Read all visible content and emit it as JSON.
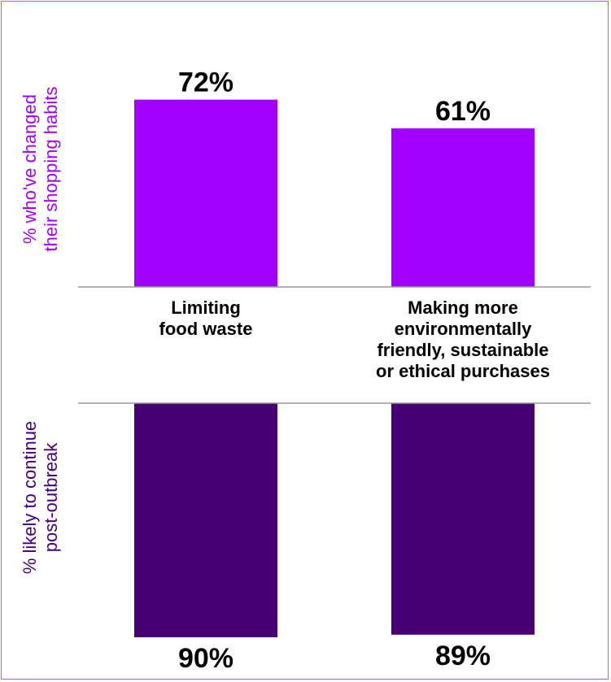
{
  "chart_data": {
    "type": "bar",
    "categories": [
      [
        "Limiting",
        "food waste"
      ],
      [
        "Making more",
        "environmentally",
        "friendly, sustainable",
        "or ethical purchases"
      ]
    ],
    "series": [
      {
        "values": [
          72,
          61
        ],
        "value_labels": [
          "72%",
          "61%"
        ],
        "color": "#a100ff",
        "axis_title": [
          "% who've changed",
          "their shopping habits"
        ],
        "axis_title_color": "#a100ff",
        "direction": "up"
      },
      {
        "values": [
          90,
          89
        ],
        "value_labels": [
          "90%",
          "89%"
        ],
        "color": "#460073",
        "axis_title": [
          "% likely to continue",
          "post-outbreak"
        ],
        "axis_title_color": "#460073",
        "direction": "down"
      }
    ],
    "ylim": [
      0,
      100
    ],
    "axis_line_color": "#999999",
    "frame_color": "#b45cdc"
  }
}
